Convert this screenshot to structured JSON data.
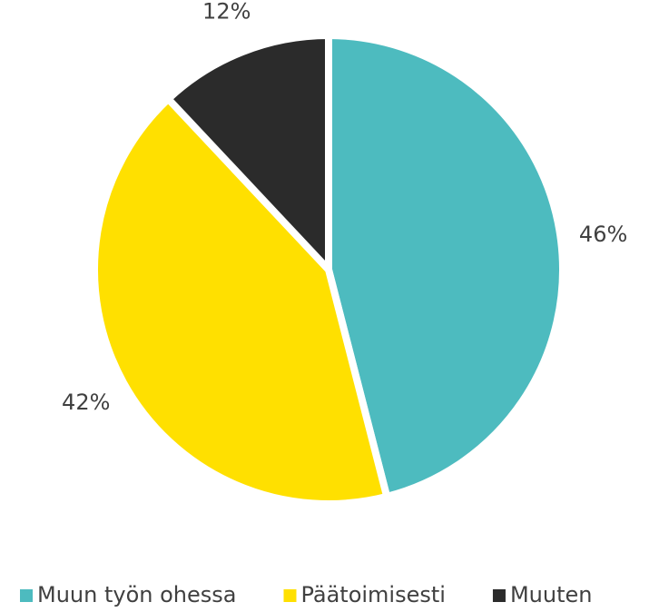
{
  "chart_data": {
    "type": "pie",
    "categories": [
      "Muun työn ohessa",
      "Päätoimisesti",
      "Muuten"
    ],
    "values": [
      46,
      42,
      12
    ],
    "value_labels": [
      "46%",
      "42%",
      "12%"
    ],
    "colors": [
      "#4dbbbf",
      "#ffe000",
      "#2b2b2b"
    ],
    "legend": "bottom"
  }
}
